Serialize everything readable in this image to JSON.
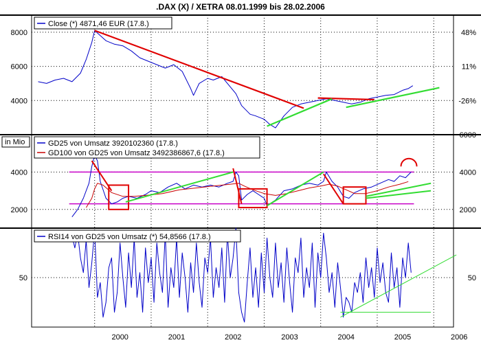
{
  "chart_data": {
    "title": ".DAX (X) / XETRA 08.01.1999 bis 28.02.2006",
    "x_tick_labels": [
      "2000",
      "2001",
      "2002",
      "2003",
      "2004",
      "2005",
      "2006"
    ],
    "panels": [
      {
        "id": "price",
        "type": "line",
        "legend": [
          "Close (*) 4871,46 EUR (17.8.)"
        ],
        "left_ticks": [
          "8000",
          "6000",
          "4000"
        ],
        "left_tick_values": [
          8000,
          6000,
          4000
        ],
        "right_ticks": [
          "48%",
          "11%",
          "-26%"
        ],
        "right_tick_values": [
          8000,
          6000,
          4000
        ],
        "ylim": [
          2000,
          9000
        ],
        "series": [
          {
            "name": "Close",
            "color": "#0000c8",
            "x": [
              1999.0,
              1999.15,
              1999.3,
              1999.45,
              1999.6,
              1999.75,
              1999.85,
              1999.95,
              2000.0,
              2000.1,
              2000.2,
              2000.35,
              2000.5,
              2000.65,
              2000.8,
              2000.95,
              2001.1,
              2001.25,
              2001.4,
              2001.55,
              2001.7,
              2001.75,
              2001.85,
              2002.0,
              2002.1,
              2002.25,
              2002.4,
              2002.5,
              2002.6,
              2002.75,
              2002.85,
              2003.0,
              2003.1,
              2003.2,
              2003.35,
              2003.5,
              2003.65,
              2003.8,
              2003.95,
              2004.1,
              2004.25,
              2004.4,
              2004.55,
              2004.7,
              2004.85,
              2005.0,
              2005.15,
              2005.3,
              2005.45,
              2005.55,
              2005.63
            ],
            "y": [
              5100,
              5000,
              5200,
              5300,
              5100,
              5600,
              6400,
              7400,
              8100,
              7800,
              7500,
              7300,
              7200,
              6900,
              6500,
              6300,
              6100,
              5900,
              6100,
              5700,
              4700,
              4300,
              5000,
              5300,
              5200,
              5400,
              4800,
              4400,
              3700,
              3200,
              3100,
              2900,
              2600,
              2400,
              3100,
              3600,
              3800,
              3900,
              4000,
              4100,
              4000,
              3900,
              3800,
              3900,
              4100,
              4200,
              4300,
              4350,
              4600,
              4700,
              4870
            ]
          },
          {
            "name": "",
            "color": "#e00000",
            "role": "trendline",
            "x": [
              2000.0,
              2003.7
            ],
            "y": [
              8100,
              3550
            ]
          },
          {
            "name": "",
            "color": "#e00000",
            "role": "trendline",
            "x": [
              2003.95,
              2004.95
            ],
            "y": [
              4150,
              4050
            ]
          },
          {
            "name": "",
            "color": "#32dc32",
            "role": "trendline",
            "x": [
              2003.05,
              2004.2
            ],
            "y": [
              2500,
              4100
            ]
          },
          {
            "name": "",
            "color": "#32dc32",
            "role": "trendline",
            "x": [
              2004.45,
              2006.1
            ],
            "y": [
              3600,
              4750
            ]
          }
        ]
      },
      {
        "id": "volume",
        "type": "line",
        "unit_label": "in Mio",
        "legend": [
          "GD25 von Umsatz 3920102360 (17.8.)",
          "GD100 von GD25 von Umsatz 3492386867,6 (17.8.)"
        ],
        "left_ticks": [
          "4000",
          "2000"
        ],
        "left_tick_values": [
          4000,
          2000
        ],
        "right_ticks": [
          "6000",
          "4000",
          "2000"
        ],
        "right_tick_values": [
          6000,
          4000,
          2000
        ],
        "ylim": [
          1000,
          6000
        ],
        "series": [
          {
            "name": "GD25 von Umsatz",
            "color": "#0000c8",
            "x": [
              1999.6,
              1999.7,
              1999.8,
              1999.9,
              1999.95,
              2000.0,
              2000.05,
              2000.1,
              2000.2,
              2000.3,
              2000.4,
              2000.5,
              2000.6,
              2000.75,
              2000.9,
              2001.0,
              2001.15,
              2001.3,
              2001.45,
              2001.6,
              2001.75,
              2001.9,
              2002.05,
              2002.2,
              2002.35,
              2002.45,
              2002.5,
              2002.55,
              2002.6,
              2002.7,
              2002.8,
              2002.9,
              2003.0,
              2003.05,
              2003.1,
              2003.2,
              2003.35,
              2003.5,
              2003.65,
              2003.8,
              2003.95,
              2004.05,
              2004.1,
              2004.2,
              2004.3,
              2004.4,
              2004.5,
              2004.6,
              2004.75,
              2004.9,
              2005.05,
              2005.2,
              2005.3,
              2005.4,
              2005.5,
              2005.6
            ],
            "y": [
              1600,
              2000,
              2600,
              3400,
              4300,
              4900,
              4600,
              3500,
              2600,
              2300,
              2400,
              2600,
              2700,
              2600,
              2800,
              3000,
              2900,
              3200,
              3400,
              3100,
              3300,
              3200,
              3300,
              3200,
              3400,
              3500,
              4000,
              3800,
              2500,
              2800,
              3000,
              2800,
              2600,
              2200,
              2300,
              2500,
              3000,
              3100,
              3300,
              3400,
              3300,
              3500,
              4000,
              3500,
              3200,
              2700,
              2600,
              2900,
              3100,
              3200,
              3400,
              3600,
              3500,
              3800,
              3700,
              4000
            ]
          },
          {
            "name": "GD100 von GD25 von Umsatz",
            "color": "#c80000",
            "x": [
              1999.85,
              1999.95,
              2000.0,
              2000.05,
              2000.15,
              2000.3,
              2000.5,
              2000.7,
              2000.9,
              2001.2,
              2001.5,
              2001.8,
              2002.1,
              2002.4,
              2002.55,
              2002.65,
              2002.8,
              2003.0,
              2003.2,
              2003.4,
              2003.6,
              2003.8,
              2004.0,
              2004.15,
              2004.3,
              2004.45,
              2004.6,
              2004.8,
              2005.0,
              2005.2,
              2005.4,
              2005.55
            ],
            "y": [
              2100,
              2600,
              3100,
              3400,
              3300,
              2900,
              2700,
              2700,
              2750,
              2850,
              3050,
              3150,
              3250,
              3350,
              3400,
              3250,
              3050,
              2850,
              2750,
              2850,
              3000,
              3150,
              3250,
              3350,
              3250,
              3050,
              2850,
              2850,
              3000,
              3200,
              3350,
              3490
            ]
          }
        ],
        "horizontal_lines": [
          {
            "y": 4000,
            "x": [
              1999.55,
              2005.65
            ],
            "color": "#c800c8"
          },
          {
            "y": 2300,
            "x": [
              1999.55,
              2005.65
            ],
            "color": "#c800c8"
          }
        ],
        "annotations": [
          {
            "shape": "rect",
            "x": [
              2000.25,
              2000.6
            ],
            "y": [
              2000,
              3300
            ],
            "color": "#e00000"
          },
          {
            "shape": "rect",
            "x": [
              2002.55,
              2003.05
            ],
            "y": [
              2100,
              3100
            ],
            "color": "#e00000"
          },
          {
            "shape": "rect",
            "x": [
              2004.4,
              2004.8
            ],
            "y": [
              2300,
              3200
            ],
            "color": "#e00000"
          },
          {
            "shape": "line",
            "x": [
              1999.95,
              2000.3
            ],
            "y": [
              4600,
              3000
            ],
            "color": "#e00000"
          },
          {
            "shape": "line",
            "x": [
              2002.45,
              2002.6
            ],
            "y": [
              4200,
              2300
            ],
            "color": "#e00000"
          },
          {
            "shape": "line",
            "x": [
              2004.05,
              2004.4
            ],
            "y": [
              3900,
              2300
            ],
            "color": "#e00000"
          },
          {
            "shape": "line",
            "x": [
              2000.55,
              2002.45
            ],
            "y": [
              2400,
              4000
            ],
            "color": "#32dc32"
          },
          {
            "shape": "line",
            "x": [
              2003.05,
              2004.05
            ],
            "y": [
              2200,
              4000
            ],
            "color": "#32dc32"
          },
          {
            "shape": "line",
            "x": [
              2004.8,
              2005.95
            ],
            "y": [
              2700,
              3400
            ],
            "color": "#32dc32"
          },
          {
            "shape": "line",
            "x": [
              2004.8,
              2005.95
            ],
            "y": [
              2600,
              3000
            ],
            "color": "#32dc32"
          },
          {
            "shape": "arc",
            "x": [
              2005.42,
              2005.7
            ],
            "y": [
              4300,
              4300
            ],
            "color": "#e00000"
          }
        ]
      },
      {
        "id": "rsi",
        "type": "line",
        "legend": [
          "RSI14 von GD25 von Umsatz (*) 54,8566 (17.8.)"
        ],
        "left_ticks": [
          "50"
        ],
        "left_tick_values": [
          50
        ],
        "right_ticks": [
          "50"
        ],
        "right_tick_values": [
          50
        ],
        "ylim": [
          0,
          100
        ],
        "series": [
          {
            "name": "RSI14 von GD25 von Umsatz",
            "color": "#0000c8",
            "x": [
              1999.6,
              1999.65,
              1999.7,
              1999.75,
              1999.8,
              1999.85,
              1999.9,
              1999.95,
              2000.0,
              2000.05,
              2000.1,
              2000.15,
              2000.2,
              2000.25,
              2000.3,
              2000.35,
              2000.4,
              2000.45,
              2000.5,
              2000.55,
              2000.6,
              2000.65,
              2000.7,
              2000.75,
              2000.8,
              2000.85,
              2000.9,
              2000.95,
              2001.0,
              2001.05,
              2001.1,
              2001.15,
              2001.2,
              2001.25,
              2001.3,
              2001.35,
              2001.4,
              2001.45,
              2001.5,
              2001.55,
              2001.6,
              2001.65,
              2001.7,
              2001.75,
              2001.8,
              2001.85,
              2001.9,
              2001.95,
              2002.0,
              2002.05,
              2002.1,
              2002.15,
              2002.2,
              2002.25,
              2002.3,
              2002.35,
              2002.4,
              2002.45,
              2002.5,
              2002.55,
              2002.6,
              2002.65,
              2002.7,
              2002.75,
              2002.8,
              2002.85,
              2002.9,
              2002.95,
              2003.0,
              2003.05,
              2003.1,
              2003.15,
              2003.2,
              2003.25,
              2003.3,
              2003.35,
              2003.4,
              2003.45,
              2003.5,
              2003.55,
              2003.6,
              2003.65,
              2003.7,
              2003.75,
              2003.8,
              2003.85,
              2003.9,
              2003.95,
              2004.0,
              2004.05,
              2004.1,
              2004.15,
              2004.2,
              2004.25,
              2004.3,
              2004.35,
              2004.4,
              2004.45,
              2004.5,
              2004.55,
              2004.6,
              2004.65,
              2004.7,
              2004.75,
              2004.8,
              2004.85,
              2004.9,
              2004.95,
              2005.0,
              2005.05,
              2005.1,
              2005.15,
              2005.2,
              2005.25,
              2005.3,
              2005.35,
              2005.4,
              2005.45,
              2005.5,
              2005.55,
              2005.6
            ],
            "y": [
              92,
              80,
              95,
              70,
              55,
              88,
              40,
              65,
              98,
              30,
              45,
              10,
              25,
              60,
              70,
              15,
              35,
              85,
              50,
              20,
              75,
              40,
              90,
              30,
              55,
              15,
              80,
              45,
              70,
              25,
              85,
              55,
              35,
              95,
              20,
              60,
              40,
              90,
              30,
              75,
              50,
              15,
              65,
              35,
              85,
              45,
              20,
              70,
              55,
              90,
              30,
              60,
              40,
              80,
              25,
              95,
              50,
              70,
              100,
              35,
              15,
              5,
              45,
              80,
              30,
              60,
              20,
              75,
              35,
              90,
              50,
              30,
              85,
              40,
              65,
              25,
              80,
              45,
              15,
              70,
              55,
              90,
              30,
              60,
              40,
              85,
              20,
              75,
              50,
              95,
              70,
              35,
              55,
              20,
              65,
              40,
              10,
              30,
              25,
              15,
              45,
              35,
              55,
              25,
              70,
              40,
              60,
              30,
              80,
              45,
              65,
              35,
              25,
              75,
              40,
              60,
              20,
              70,
              50,
              85,
              55
            ]
          }
        ],
        "trendlines": [
          {
            "x": [
              2004.35,
              2006.4
            ],
            "y": [
              10,
              73
            ],
            "color": "#32dc32"
          },
          {
            "x": [
              2004.35,
              2005.95
            ],
            "y": [
              15,
              15
            ],
            "color": "#32dc32"
          }
        ]
      }
    ]
  }
}
